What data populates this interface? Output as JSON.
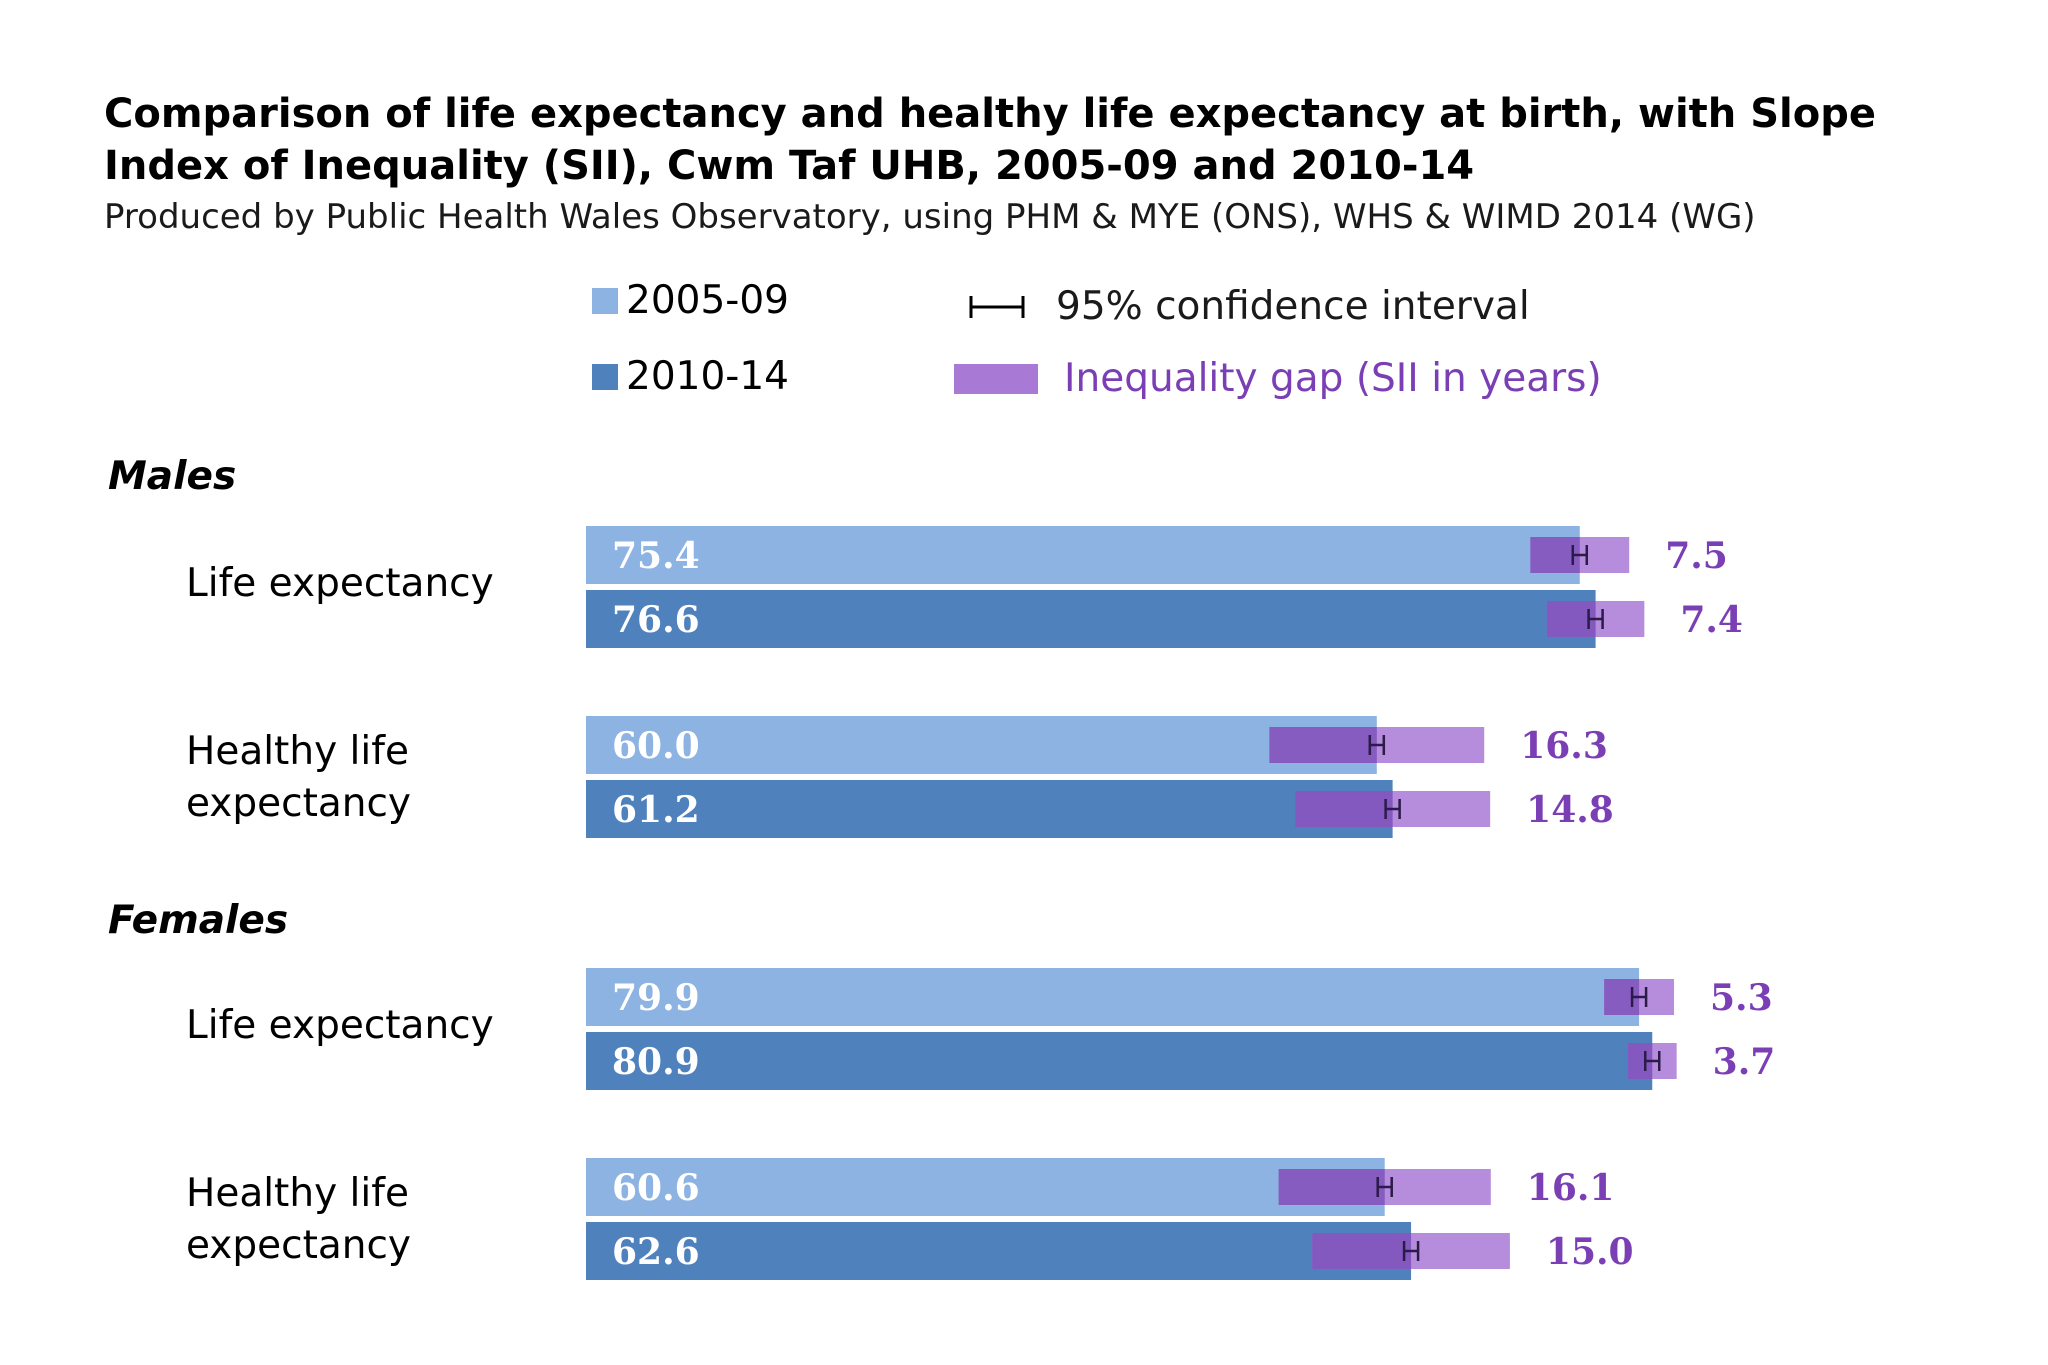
{
  "title": "Comparison of life expectancy and healthy life expectancy at birth, with Slope Index of Inequality (SII), Cwm Taf UHB, 2005-09 and 2010-14",
  "subtitle": "Produced by Public Health Wales Observatory, using PHM & MYE (ONS), WHS & WIMD 2014 (WG)",
  "legend": {
    "series_2005": "2005-09",
    "series_2010": "2010-14",
    "ci": "95% confidence interval",
    "gap": "Inequality gap (SII in years)"
  },
  "colors": {
    "series_2005": "#8db3e2",
    "series_2010": "#4f81bd",
    "gap": "#a979d6",
    "gap_dark": "#7c4fb8",
    "gap_label": "#7b3fb5"
  },
  "groups": [
    {
      "title": "Males"
    },
    {
      "title": "Females"
    }
  ],
  "chart_data": {
    "type": "bar",
    "orientation": "horizontal",
    "categories": [
      "Males - Life expectancy",
      "Males - Healthy life expectancy",
      "Females - Life expectancy",
      "Females - Healthy life expectancy"
    ],
    "category_labels": [
      "Life expectancy",
      "Healthy life expectancy",
      "Life expectancy",
      "Healthy life expectancy"
    ],
    "series": [
      {
        "name": "2005-09",
        "values": [
          75.4,
          60.0,
          79.9,
          60.6
        ],
        "sii": [
          7.5,
          16.3,
          5.3,
          16.1
        ]
      },
      {
        "name": "2010-14",
        "values": [
          76.6,
          61.2,
          80.9,
          62.6
        ],
        "sii": [
          7.4,
          14.8,
          3.7,
          15.0
        ]
      }
    ],
    "value_labels": [
      [
        "75.4",
        "60.0",
        "79.9",
        "60.6"
      ],
      [
        "76.6",
        "61.2",
        "80.9",
        "62.6"
      ]
    ],
    "sii_labels": [
      [
        "7.5",
        "16.3",
        "5.3",
        "16.1"
      ],
      [
        "7.4",
        "14.8",
        "3.7",
        "15.0"
      ]
    ],
    "xlim": [
      0,
      90
    ],
    "grid": false,
    "legend_position": "top"
  }
}
